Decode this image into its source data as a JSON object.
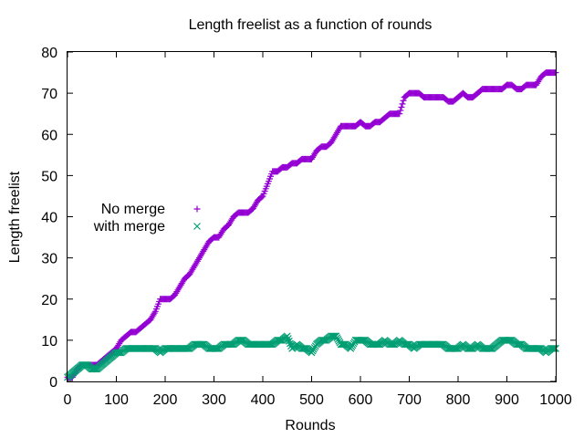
{
  "chart_data": {
    "type": "scatter",
    "title": "Length freelist as a function of rounds",
    "xlabel": "Rounds",
    "ylabel": "Length freelist",
    "xlim": [
      0,
      1000
    ],
    "ylim": [
      0,
      80
    ],
    "xticks": [
      0,
      100,
      200,
      300,
      400,
      500,
      600,
      700,
      800,
      900,
      1000
    ],
    "yticks": [
      0,
      10,
      20,
      30,
      40,
      50,
      60,
      70,
      80
    ],
    "grid": false,
    "legend_position": "center-left",
    "series": [
      {
        "name": "No merge",
        "marker": "plus",
        "color": "#9400d3",
        "x": [
          0,
          10,
          20,
          30,
          40,
          50,
          60,
          70,
          80,
          90,
          100,
          110,
          120,
          130,
          140,
          150,
          160,
          170,
          180,
          190,
          200,
          210,
          220,
          230,
          240,
          250,
          260,
          270,
          280,
          290,
          300,
          310,
          320,
          330,
          340,
          350,
          360,
          370,
          380,
          390,
          400,
          410,
          420,
          430,
          440,
          450,
          460,
          470,
          480,
          490,
          500,
          510,
          520,
          530,
          540,
          550,
          560,
          570,
          580,
          590,
          600,
          610,
          620,
          630,
          640,
          650,
          660,
          670,
          680,
          690,
          700,
          710,
          720,
          730,
          740,
          750,
          760,
          770,
          780,
          790,
          800,
          810,
          820,
          830,
          840,
          850,
          860,
          870,
          880,
          890,
          900,
          910,
          920,
          930,
          940,
          950,
          960,
          970,
          980,
          990,
          1000
        ],
        "y": [
          1,
          1,
          3,
          4,
          4,
          4,
          4,
          5,
          6,
          7,
          8,
          10,
          11,
          12,
          12,
          13,
          14,
          15,
          17,
          20,
          20,
          20,
          21,
          23,
          25,
          26,
          28,
          30,
          32,
          34,
          35,
          35,
          37,
          38,
          40,
          41,
          41,
          41,
          42,
          44,
          45,
          48,
          51,
          51,
          52,
          52,
          53,
          53,
          54,
          54,
          54,
          56,
          57,
          57,
          58,
          60,
          62,
          62,
          62,
          62,
          63,
          62,
          62,
          63,
          63,
          64,
          65,
          65,
          65,
          69,
          70,
          70,
          70,
          69,
          69,
          69,
          69,
          69,
          68,
          68,
          69,
          70,
          69,
          69,
          70,
          71,
          71,
          71,
          71,
          71,
          72,
          72,
          71,
          71,
          72,
          72,
          72,
          74,
          75,
          75,
          75
        ]
      },
      {
        "name": "with merge",
        "marker": "cross",
        "color": "#009e73",
        "x": [
          0,
          10,
          20,
          30,
          40,
          50,
          60,
          70,
          80,
          90,
          100,
          110,
          120,
          130,
          140,
          150,
          160,
          170,
          180,
          190,
          200,
          210,
          220,
          230,
          240,
          250,
          260,
          270,
          280,
          290,
          300,
          310,
          320,
          330,
          340,
          350,
          360,
          370,
          380,
          390,
          400,
          410,
          420,
          430,
          440,
          450,
          460,
          470,
          480,
          490,
          500,
          510,
          520,
          530,
          540,
          550,
          560,
          570,
          580,
          590,
          600,
          610,
          620,
          630,
          640,
          650,
          660,
          670,
          680,
          690,
          700,
          710,
          720,
          730,
          740,
          750,
          760,
          770,
          780,
          790,
          800,
          810,
          820,
          830,
          840,
          850,
          860,
          870,
          880,
          890,
          900,
          910,
          920,
          930,
          940,
          950,
          960,
          970,
          980,
          990,
          1000
        ],
        "y": [
          1,
          2,
          3,
          4,
          4,
          3,
          3,
          4,
          5,
          6,
          7,
          7,
          8,
          8,
          8,
          8,
          8,
          8,
          8,
          7,
          8,
          8,
          8,
          8,
          8,
          8,
          9,
          9,
          9,
          8,
          8,
          8,
          9,
          9,
          9,
          10,
          10,
          9,
          9,
          9,
          9,
          9,
          9,
          10,
          10,
          11,
          8,
          9,
          8,
          8,
          7,
          9,
          10,
          10,
          11,
          11,
          9,
          9,
          8,
          10,
          10,
          10,
          9,
          9,
          9,
          10,
          9,
          9,
          10,
          9,
          9,
          8,
          9,
          9,
          9,
          9,
          9,
          9,
          8,
          8,
          8,
          9,
          8,
          8,
          9,
          8,
          8,
          8,
          9,
          10,
          10,
          10,
          9,
          9,
          8,
          8,
          8,
          8,
          7,
          8,
          8
        ]
      }
    ]
  }
}
